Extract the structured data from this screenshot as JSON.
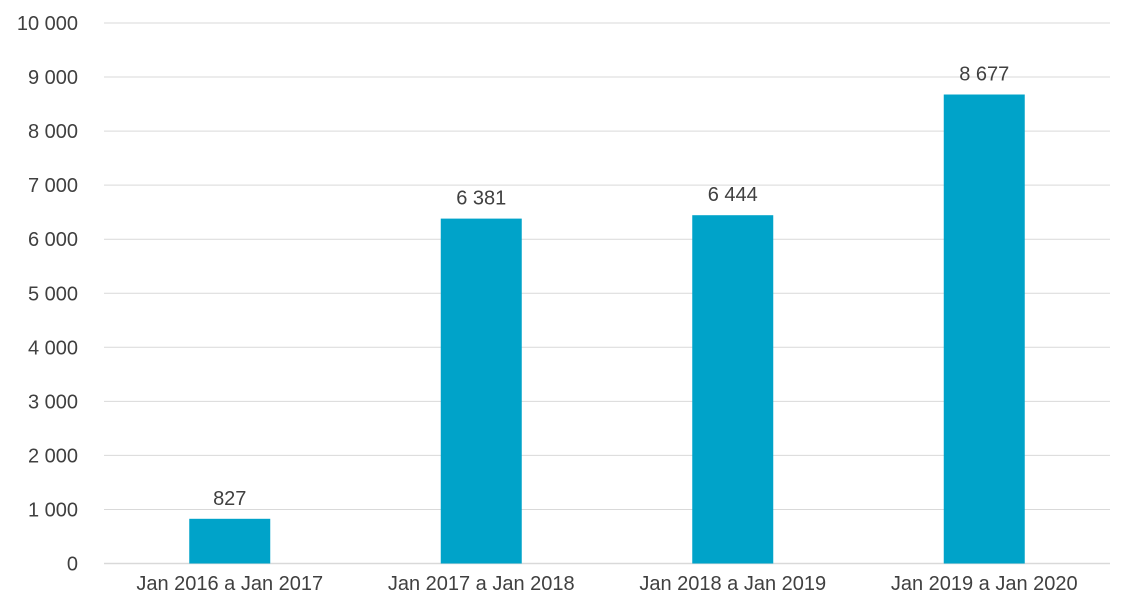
{
  "chart_data": {
    "type": "bar",
    "title": "",
    "xlabel": "",
    "ylabel": "",
    "categories": [
      "Jan 2016 a Jan 2017",
      "Jan 2017 a Jan 2018",
      "Jan 2018 a Jan 2019",
      "Jan 2019 a Jan 2020"
    ],
    "values": [
      827,
      6381,
      6444,
      8677
    ],
    "value_labels": [
      "827",
      "6 381",
      "6 444",
      "8 677"
    ],
    "ylim": [
      0,
      10000
    ],
    "y_ticks": [
      0,
      1000,
      2000,
      3000,
      4000,
      5000,
      6000,
      7000,
      8000,
      9000,
      10000
    ],
    "y_tick_labels": [
      "0",
      "1 000",
      "2 000",
      "3 000",
      "4 000",
      "5 000",
      "6 000",
      "7 000",
      "8 000",
      "9 000",
      "10 000"
    ],
    "grid": true,
    "legend": "none",
    "bar_color": "#00A3C9",
    "grid_color": "#D9D9D9",
    "text_color": "#404040"
  }
}
